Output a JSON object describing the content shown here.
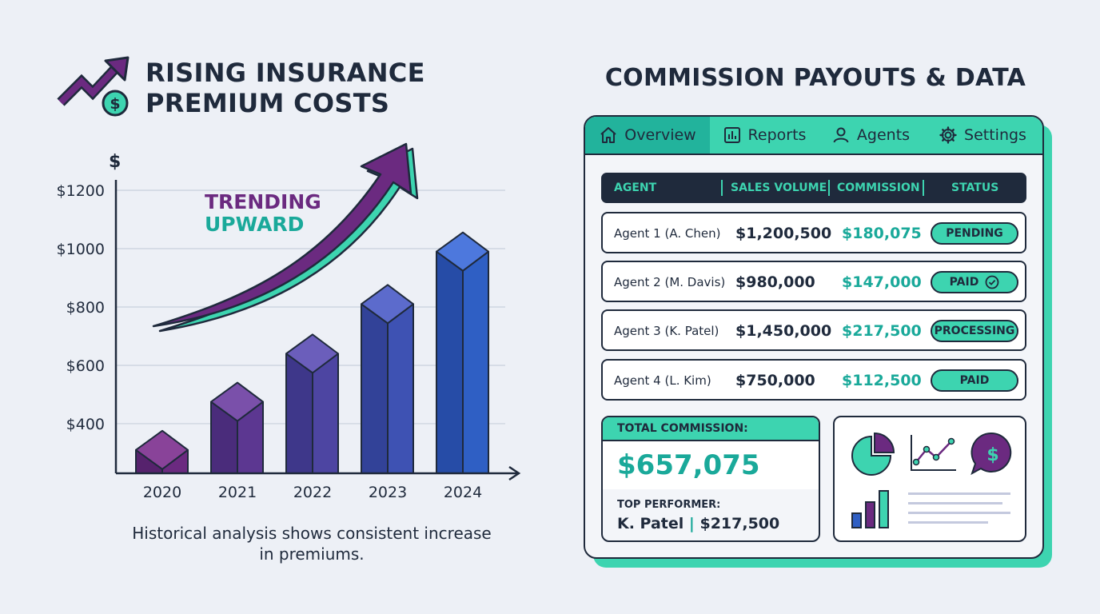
{
  "left": {
    "title_line1": "RISING INSURANCE",
    "title_line2": "PREMIUM COSTS",
    "caption_line1": "Historical analysis shows consistent increase",
    "caption_line2": "in premiums."
  },
  "chart_data": {
    "type": "bar",
    "title": "RISING INSURANCE PREMIUM COSTS",
    "ylabel": "$",
    "xlabel": "",
    "categories": [
      "2020",
      "2021",
      "2022",
      "2023",
      "2024"
    ],
    "values": [
      310,
      475,
      640,
      810,
      990
    ],
    "ylim": [
      230,
      1200
    ],
    "yticks": [
      400,
      600,
      800,
      1000,
      1200
    ],
    "ytick_labels": [
      "$400",
      "$600",
      "$800",
      "$1000",
      "$1200"
    ],
    "annotation_line1": "TRENDING",
    "annotation_line2": "UPWARD",
    "grid": true
  },
  "right": {
    "title": "COMMISSION PAYOUTS & DATA",
    "tabs": [
      {
        "label": "Overview",
        "icon": "home-icon"
      },
      {
        "label": "Reports",
        "icon": "bar-chart-icon"
      },
      {
        "label": "Agents",
        "icon": "user-icon"
      },
      {
        "label": "Settings",
        "icon": "gear-icon"
      }
    ],
    "table": {
      "headers": [
        "AGENT",
        "SALES VOLUME",
        "COMMISSION",
        "STATUS"
      ],
      "rows": [
        {
          "agent": "Agent 1 (A. Chen)",
          "sales": "$1,200,500",
          "commission": "$180,075",
          "status": "PENDING"
        },
        {
          "agent": "Agent 2 (M. Davis)",
          "sales": "$980,000",
          "commission": "$147,000",
          "status": "PAID"
        },
        {
          "agent": "Agent 3 (K. Patel)",
          "sales": "$1,450,000",
          "commission": "$217,500",
          "status": "PROCESSING"
        },
        {
          "agent": "Agent 4 (L. Kim)",
          "sales": "$750,000",
          "commission": "$112,500",
          "status": "PAID"
        }
      ]
    },
    "summary": {
      "total_label": "TOTAL COMMISSION:",
      "total_value": "$657,075",
      "top_label": "TOP PERFORMER:",
      "top_name": "K. Patel",
      "top_sep": "|",
      "top_value": "$217,500"
    }
  },
  "colors": {
    "teal": "#3dd4b0",
    "teal_dark": "#1aa99a",
    "purple": "#6b2a80",
    "navy": "#1f2a3c",
    "blue": "#2f5fc4"
  }
}
